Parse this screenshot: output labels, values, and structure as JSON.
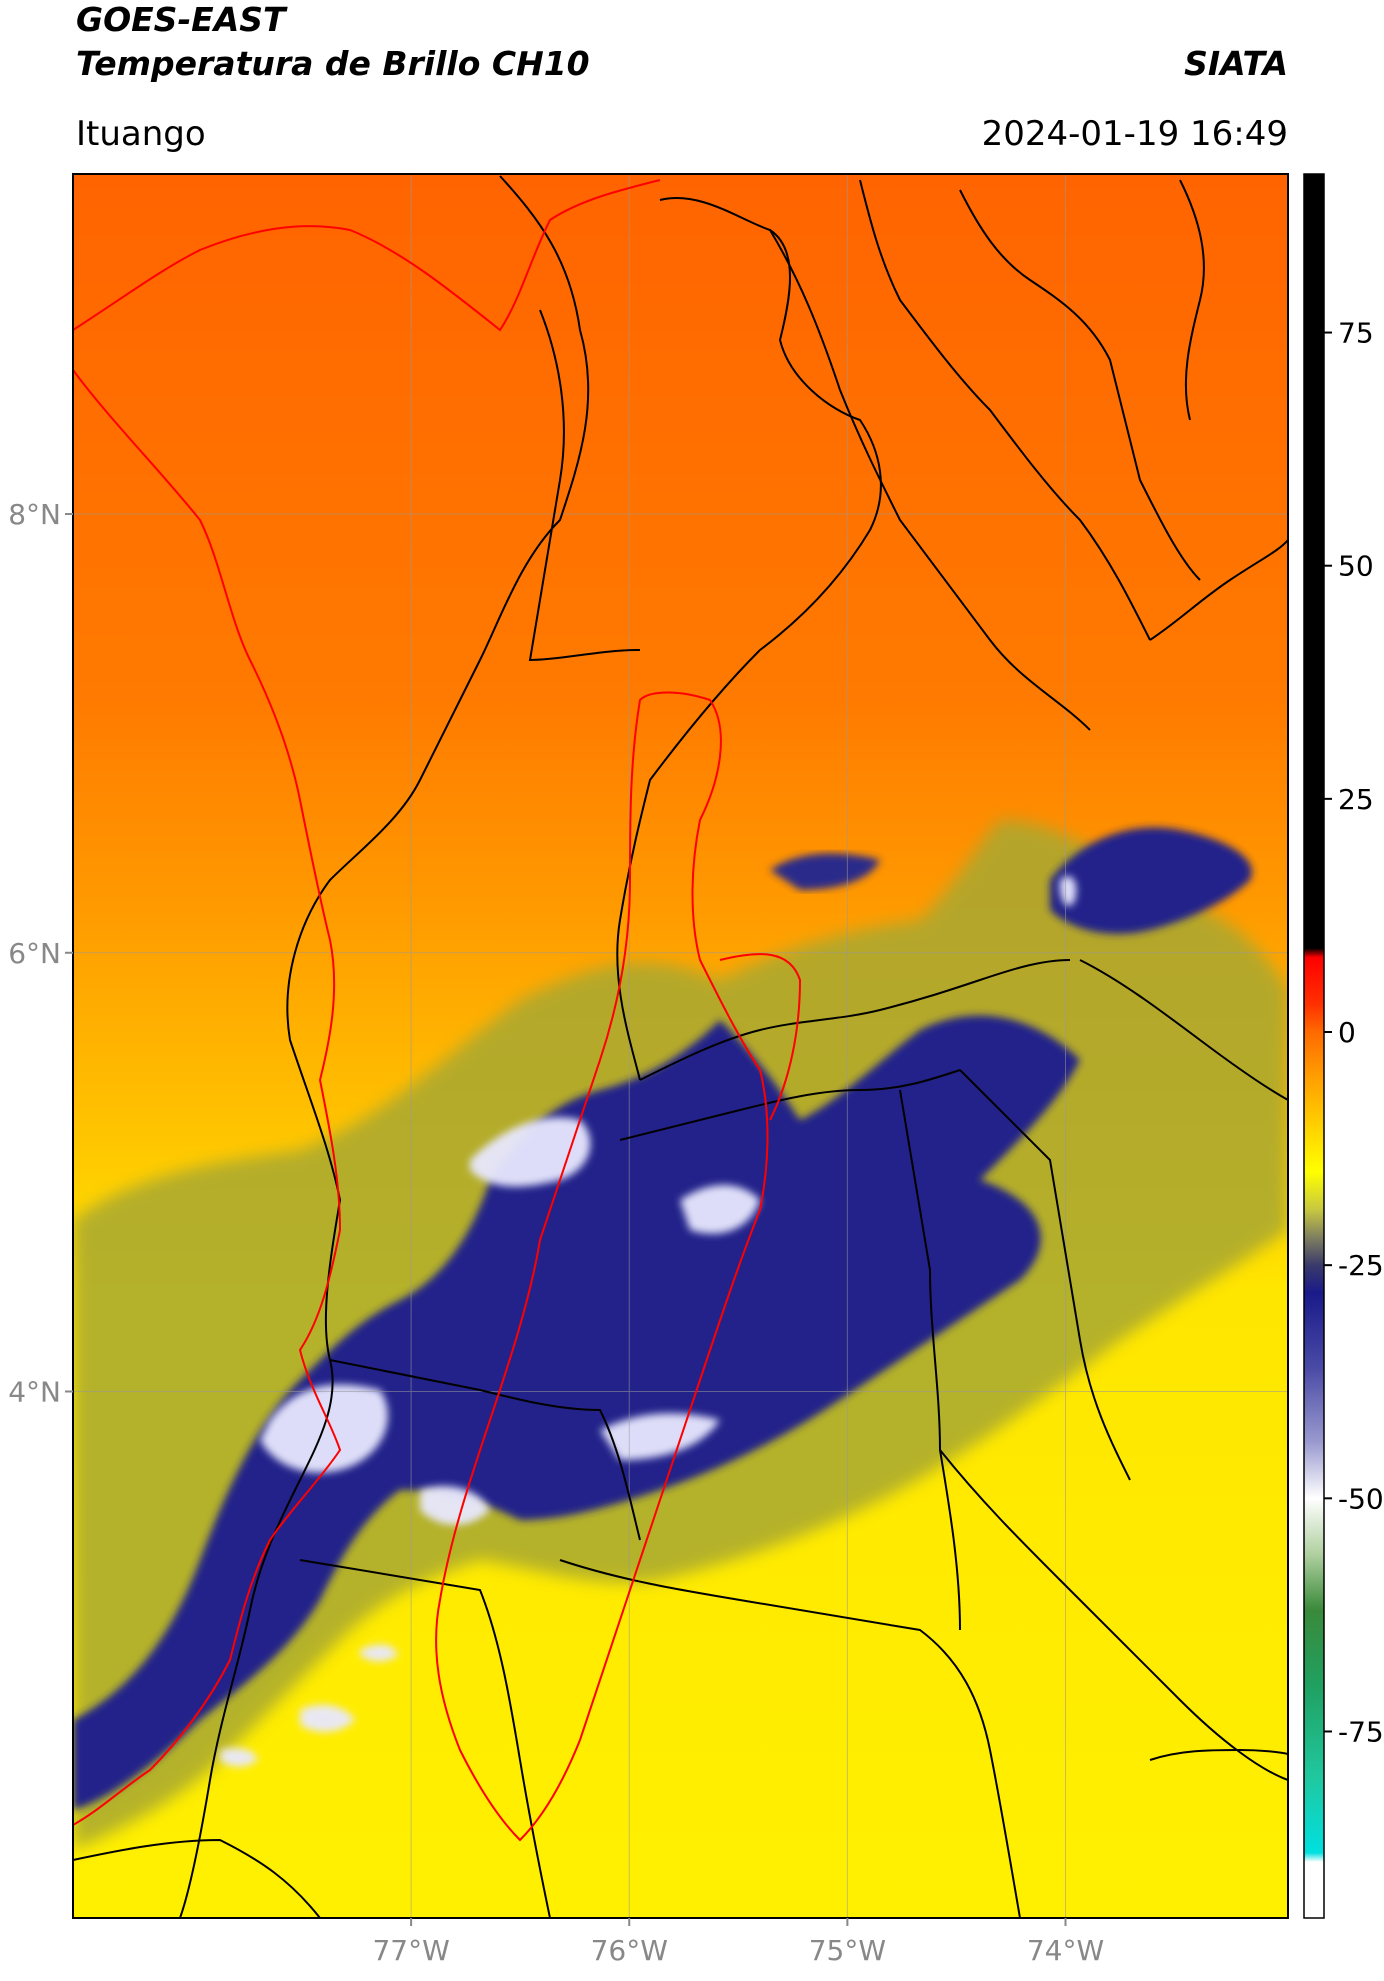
{
  "header": {
    "satellite": "GOES-EAST",
    "product": "Temperatura de Brillo CH10",
    "brand": "SIATA",
    "region": "Ituango",
    "timestamp": "2024-01-19 16:49"
  },
  "map": {
    "lon_range": [
      -78.55,
      -72.98
    ],
    "lat_range": [
      1.6,
      9.55
    ],
    "lon_ticks": [
      {
        "value": -77,
        "label": "77°W"
      },
      {
        "value": -76,
        "label": "76°W"
      },
      {
        "value": -75,
        "label": "75°W"
      },
      {
        "value": -74,
        "label": "74°W"
      }
    ],
    "lat_ticks": [
      {
        "value": 8,
        "label": "8°N"
      },
      {
        "value": 6,
        "label": "6°N"
      },
      {
        "value": 4,
        "label": "4°N"
      }
    ],
    "grid": true,
    "colors": {
      "warm_north": "#ff6a00",
      "mid_orange": "#ff9a00",
      "yellow": "#ffee00",
      "olive": "#9a9a30",
      "deep_cloud": "#1a1a80",
      "cold_top": "#eeeeff",
      "boundary_black": "#000000",
      "boundary_red": "#ff0000"
    }
  },
  "colorbar": {
    "range": [
      -95,
      92
    ],
    "ticks": [
      {
        "value": 75,
        "label": "75"
      },
      {
        "value": 50,
        "label": "50"
      },
      {
        "value": 25,
        "label": "25"
      },
      {
        "value": 0,
        "label": "0"
      },
      {
        "value": -25,
        "label": "-25"
      },
      {
        "value": -50,
        "label": "-50"
      },
      {
        "value": -75,
        "label": "-75"
      }
    ],
    "stops": [
      {
        "value": 92,
        "color": "#000000"
      },
      {
        "value": 9,
        "color": "#000000"
      },
      {
        "value": 8,
        "color": "#ff0000"
      },
      {
        "value": 3,
        "color": "#ff3000"
      },
      {
        "value": 0,
        "color": "#ff6a00"
      },
      {
        "value": -5,
        "color": "#ffa000"
      },
      {
        "value": -10,
        "color": "#ffd000"
      },
      {
        "value": -15,
        "color": "#ffff00"
      },
      {
        "value": -19,
        "color": "#c8c840"
      },
      {
        "value": -22,
        "color": "#808060"
      },
      {
        "value": -25,
        "color": "#3a3a6a"
      },
      {
        "value": -28,
        "color": "#1a1a8a"
      },
      {
        "value": -36,
        "color": "#4a4aa6"
      },
      {
        "value": -44,
        "color": "#9a9ad0"
      },
      {
        "value": -50,
        "color": "#ffffff"
      },
      {
        "value": -56,
        "color": "#b0d0a0"
      },
      {
        "value": -62,
        "color": "#3a8a3a"
      },
      {
        "value": -70,
        "color": "#20a060"
      },
      {
        "value": -80,
        "color": "#20c8a0"
      },
      {
        "value": -88,
        "color": "#00e0e0"
      },
      {
        "value": -89,
        "color": "#ffffff"
      },
      {
        "value": -95,
        "color": "#ffffff"
      }
    ]
  }
}
